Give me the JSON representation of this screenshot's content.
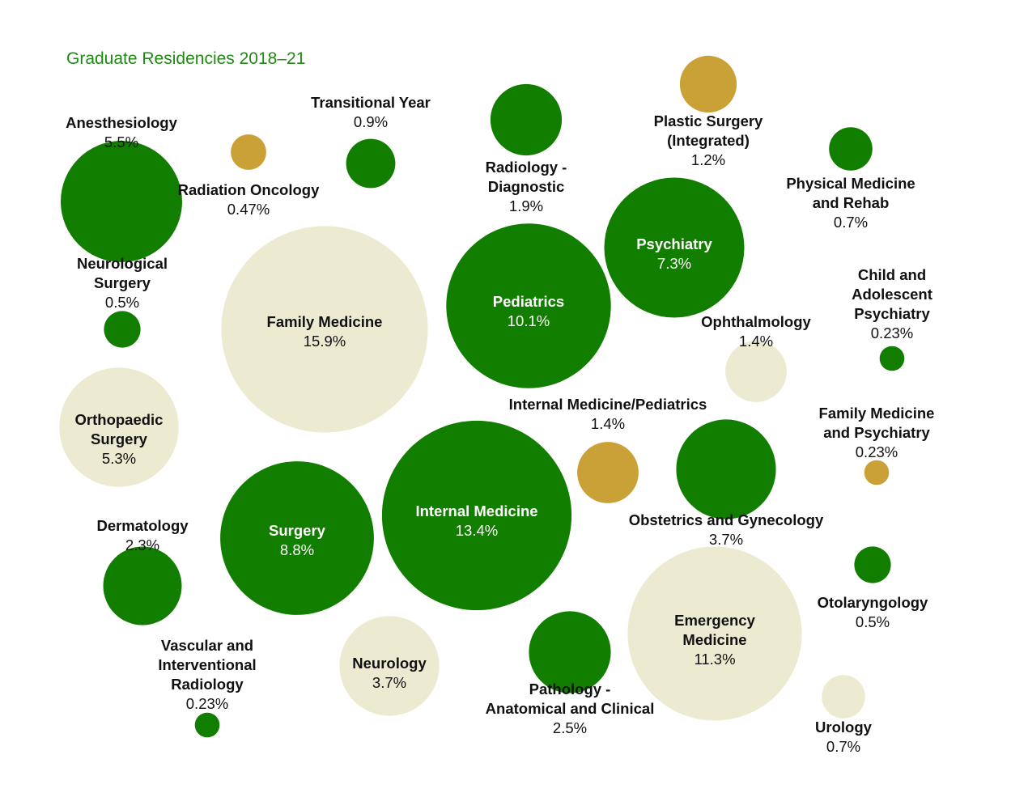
{
  "colors": {
    "dark_green": "#127e00",
    "gold": "#c9a137",
    "cream": "#ecebd2",
    "title_green": "#1f8a12",
    "label_dark": "#111111",
    "label_on_dark": "#ffffff"
  },
  "chart_data": {
    "type": "bubble",
    "title": "Graduate Residencies 2018–21",
    "unit": "percent",
    "items": [
      {
        "lines": [
          "Family Medicine"
        ],
        "value": "15.9%",
        "pct": 15.9,
        "color": "cream"
      },
      {
        "lines": [
          "Internal Medicine"
        ],
        "value": "13.4%",
        "pct": 13.4,
        "color": "dark_green"
      },
      {
        "lines": [
          "Emergency",
          "Medicine"
        ],
        "value": "11.3%",
        "pct": 11.3,
        "color": "cream"
      },
      {
        "lines": [
          "Pediatrics"
        ],
        "value": "10.1%",
        "pct": 10.1,
        "color": "dark_green"
      },
      {
        "lines": [
          "Surgery"
        ],
        "value": "8.8%",
        "pct": 8.8,
        "color": "dark_green"
      },
      {
        "lines": [
          "Psychiatry"
        ],
        "value": "7.3%",
        "pct": 7.3,
        "color": "dark_green"
      },
      {
        "lines": [
          "Anesthesiology"
        ],
        "value": "5.5%",
        "pct": 5.5,
        "color": "dark_green"
      },
      {
        "lines": [
          "Orthopaedic",
          "Surgery"
        ],
        "value": "5.3%",
        "pct": 5.3,
        "color": "cream"
      },
      {
        "lines": [
          "Obstetrics and Gynecology"
        ],
        "value": "3.7%",
        "pct": 3.7,
        "color": "dark_green"
      },
      {
        "lines": [
          "Neurology"
        ],
        "value": "3.7%",
        "pct": 3.7,
        "color": "cream"
      },
      {
        "lines": [
          "Pathology -",
          "Anatomical and Clinical"
        ],
        "value": "2.5%",
        "pct": 2.5,
        "color": "dark_green"
      },
      {
        "lines": [
          "Dermatology"
        ],
        "value": "2.3%",
        "pct": 2.3,
        "color": "dark_green"
      },
      {
        "lines": [
          "Radiology -",
          "Diagnostic"
        ],
        "value": "1.9%",
        "pct": 1.9,
        "color": "dark_green"
      },
      {
        "lines": [
          "Ophthalmology"
        ],
        "value": "1.4%",
        "pct": 1.4,
        "color": "cream"
      },
      {
        "lines": [
          "Internal Medicine/Pediatrics"
        ],
        "value": "1.4%",
        "pct": 1.4,
        "color": "gold"
      },
      {
        "lines": [
          "Plastic Surgery",
          "(Integrated)"
        ],
        "value": "1.2%",
        "pct": 1.2,
        "color": "gold"
      },
      {
        "lines": [
          "Transitional Year"
        ],
        "value": "0.9%",
        "pct": 0.9,
        "color": "dark_green"
      },
      {
        "lines": [
          "Physical Medicine",
          "and Rehab"
        ],
        "value": "0.7%",
        "pct": 0.7,
        "color": "dark_green"
      },
      {
        "lines": [
          "Urology"
        ],
        "value": "0.7%",
        "pct": 0.7,
        "color": "cream"
      },
      {
        "lines": [
          "Neurological",
          "Surgery"
        ],
        "value": "0.5%",
        "pct": 0.5,
        "color": "dark_green"
      },
      {
        "lines": [
          "Otolaryngology"
        ],
        "value": "0.5%",
        "pct": 0.5,
        "color": "dark_green"
      },
      {
        "lines": [
          "Radiation Oncology"
        ],
        "value": "0.47%",
        "pct": 0.47,
        "color": "gold"
      },
      {
        "lines": [
          "Child and",
          "Adolescent",
          "Psychiatry"
        ],
        "value": "0.23%",
        "pct": 0.23,
        "color": "dark_green"
      },
      {
        "lines": [
          "Family Medicine",
          "and Psychiatry"
        ],
        "value": "0.23%",
        "pct": 0.23,
        "color": "gold"
      },
      {
        "lines": [
          "Vascular and",
          "Interventional",
          "Radiology"
        ],
        "value": "0.23%",
        "pct": 0.23,
        "color": "dark_green"
      }
    ]
  }
}
